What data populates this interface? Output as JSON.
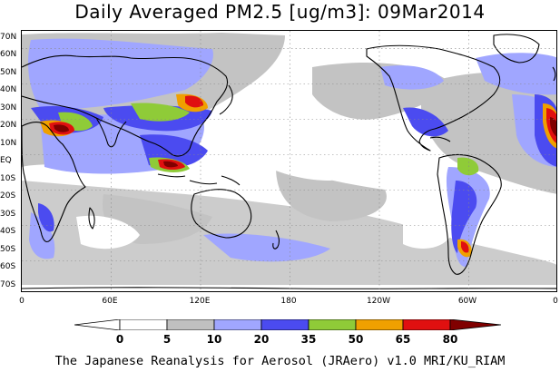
{
  "title": "Daily Averaged PM2.5 [ug/m3]: 09Mar2014",
  "footer": "The Japanese Reanalysis for Aerosol (JRAero) v1.0 MRI/KU_RIAM",
  "lat_labels": [
    "70N",
    "60N",
    "50N",
    "40N",
    "30N",
    "20N",
    "10N",
    "EQ",
    "10S",
    "20S",
    "30S",
    "40S",
    "50S",
    "60S",
    "70S"
  ],
  "lon_labels": [
    "0",
    "60E",
    "120E",
    "180",
    "120W",
    "60W",
    "0"
  ],
  "legend": {
    "labels": [
      "0",
      "5",
      "10",
      "20",
      "35",
      "50",
      "65",
      "80"
    ],
    "colors": [
      "#ffffff",
      "#c0c0c0",
      "#a0a6ff",
      "#4b4bf0",
      "#8fcb38",
      "#f0a000",
      "#e01010",
      "#800000"
    ]
  },
  "colors": {
    "land_outline": "#000000",
    "grid": "#888888"
  }
}
